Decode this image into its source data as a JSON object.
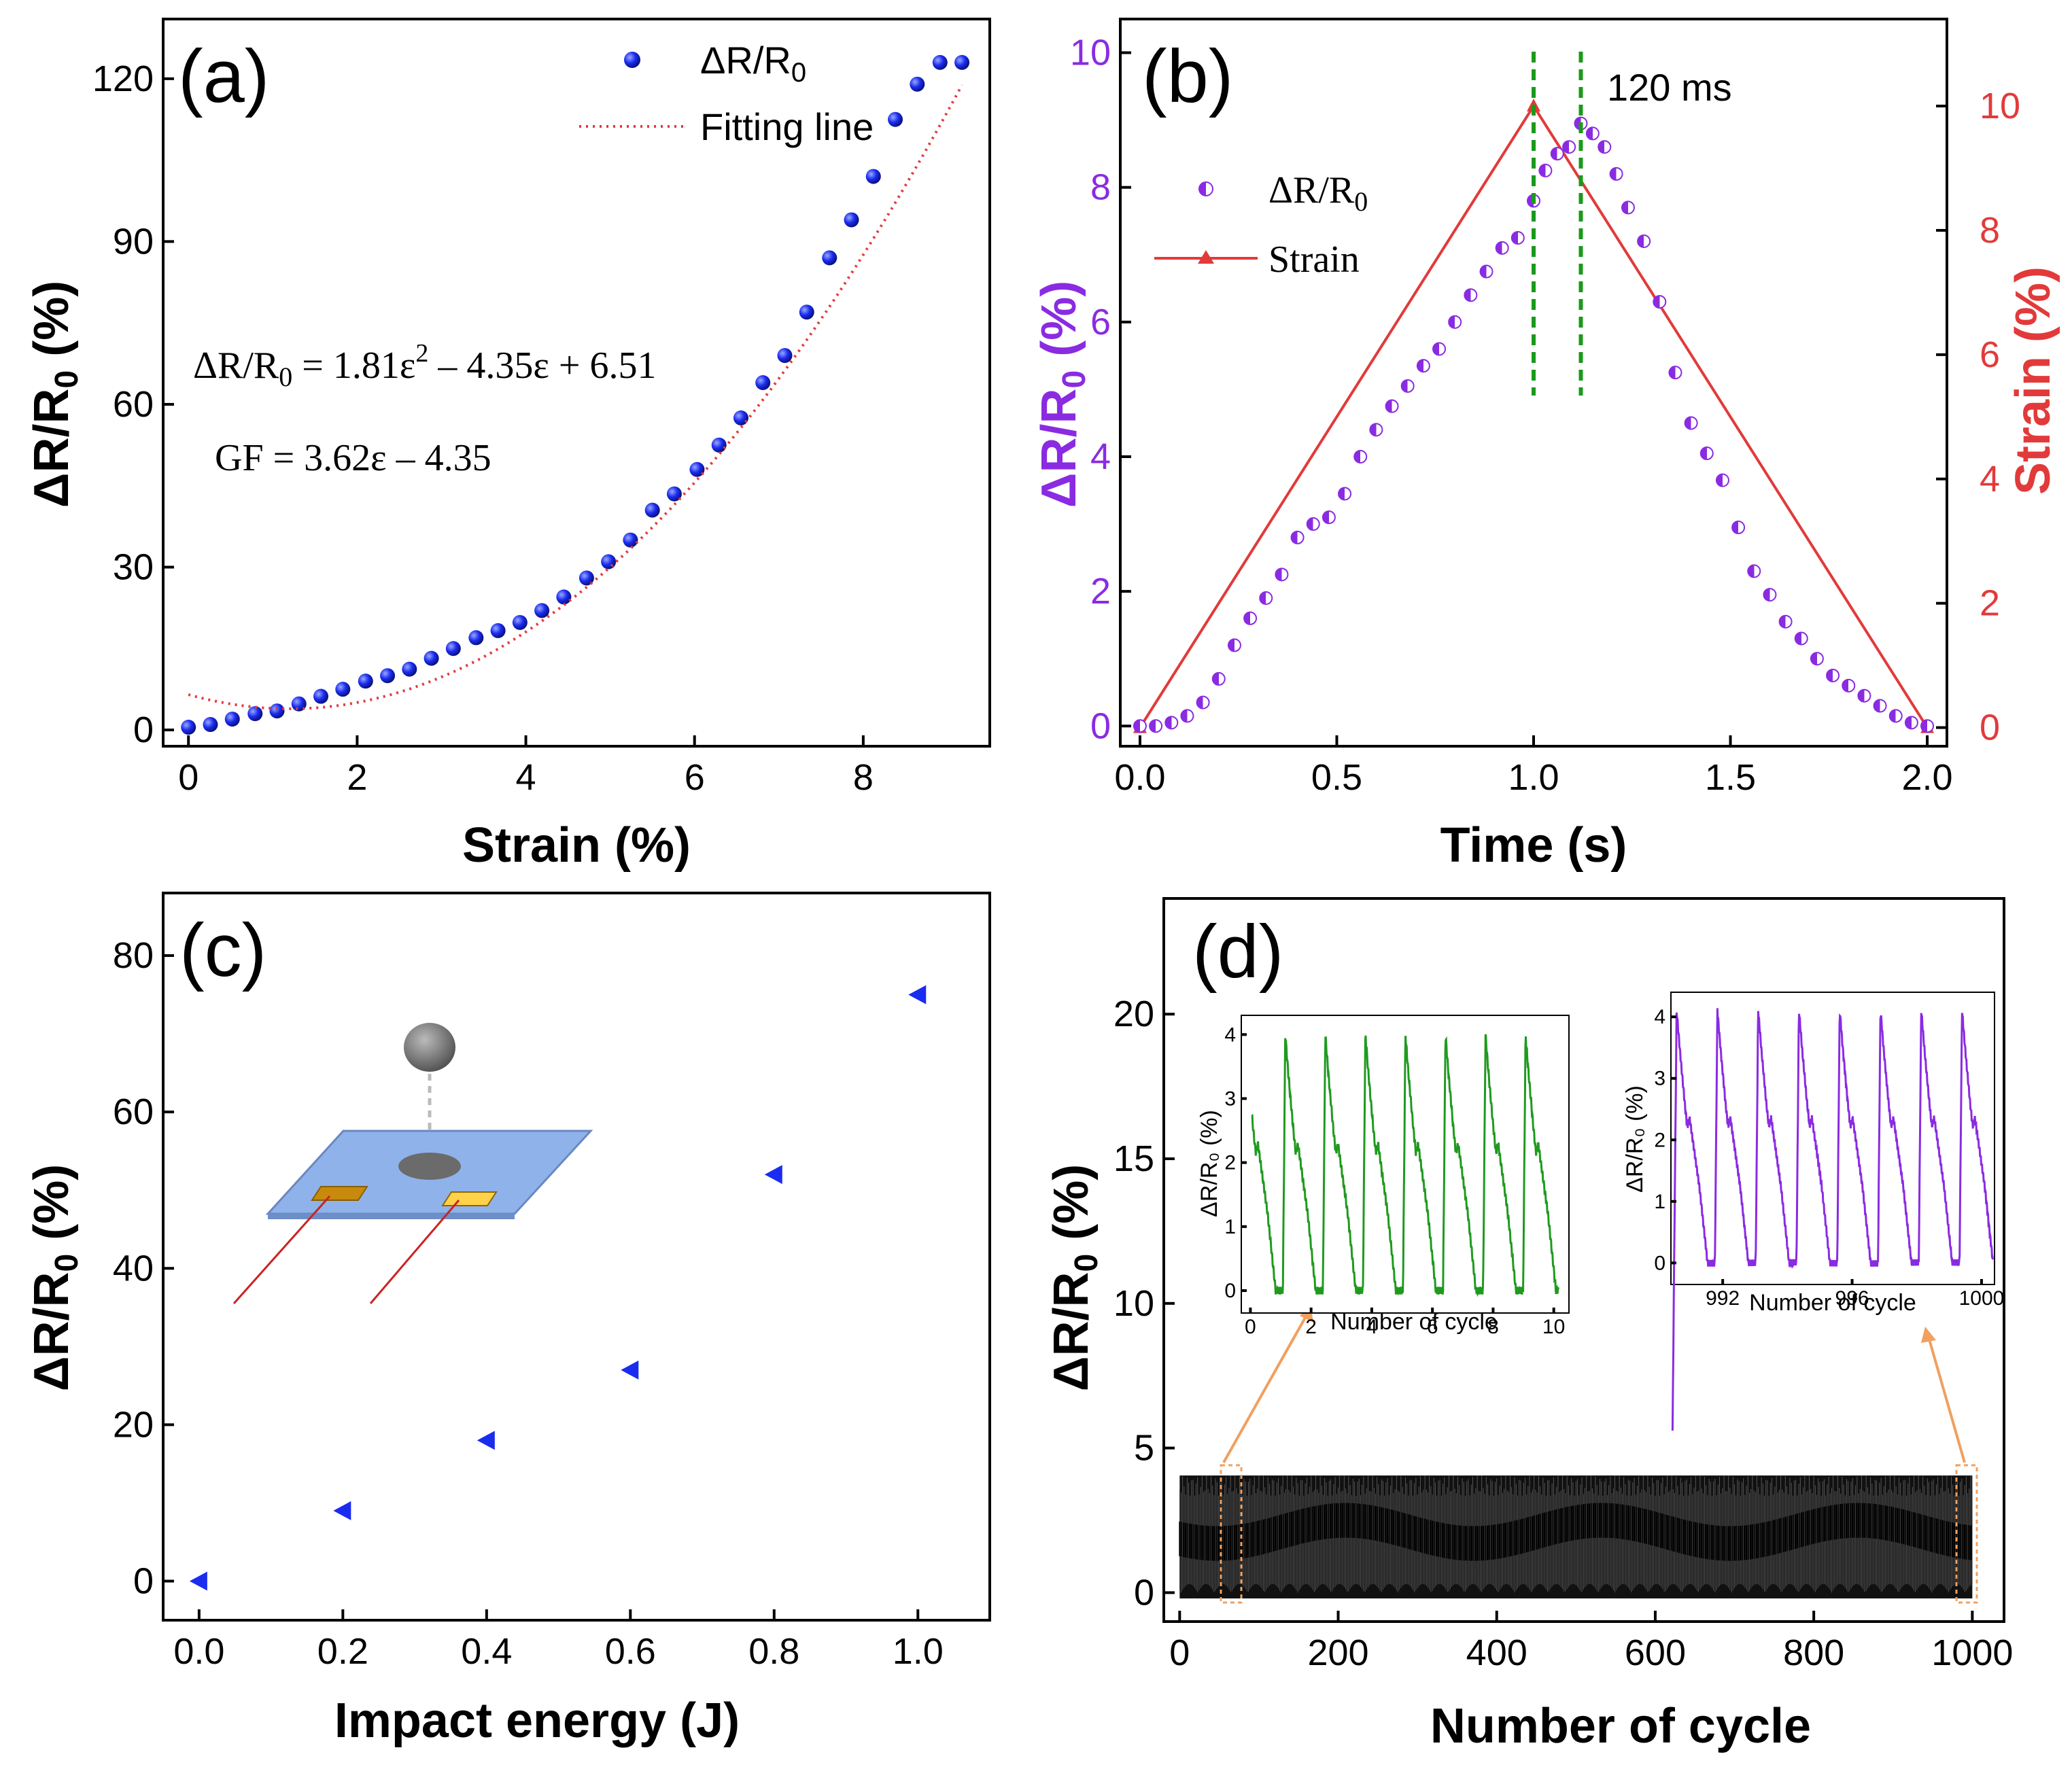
{
  "colors": {
    "blue": "#1a2cf0",
    "red": "#e23a3a",
    "purple": "#8a2be2",
    "green": "#1f9a1f",
    "dash_green": "#1a9a1a",
    "orange": "#f0a060",
    "black": "#000000"
  },
  "panels": {
    "a": {
      "label": "(a)",
      "xlabel": "Strain (%)",
      "ylabel_main": "ΔR/R",
      "ylabel_sub": "0",
      "ylabel_tail": " (%)",
      "legend": {
        "series1": "ΔR/R",
        "series1_sub": "0",
        "series2": "Fitting line"
      },
      "eq1": {
        "left": "ΔR/R",
        "sub": "0",
        "mid": " = 1.81ε",
        "sup": "2",
        "right": " – 4.35ε + 6.51"
      },
      "eq2": "GF = 3.62ε – 4.35",
      "xticks": [
        "0",
        "2",
        "4",
        "6",
        "8"
      ],
      "yticks": [
        "0",
        "30",
        "60",
        "90",
        "120"
      ]
    },
    "b": {
      "label": "(b)",
      "xlabel": "Time (s)",
      "ylabel_left_main": "ΔR/R",
      "ylabel_left_sub": "0",
      "ylabel_left_tail": " (%)",
      "ylabel_right": "Strain (%)",
      "legend": {
        "series1": "ΔR/R",
        "series1_sub": "0",
        "series2": "Strain"
      },
      "annotation": "120 ms",
      "xticks": [
        "0.0",
        "0.5",
        "1.0",
        "1.5",
        "2.0"
      ],
      "yticks_left": [
        "0",
        "2",
        "4",
        "6",
        "8",
        "10"
      ],
      "yticks_right": [
        "0",
        "2",
        "4",
        "6",
        "8",
        "10"
      ]
    },
    "c": {
      "label": "(c)",
      "xlabel": "Impact energy (J)",
      "ylabel_main": "ΔR/R",
      "ylabel_sub": "0",
      "ylabel_tail": " (%)",
      "xticks": [
        "0.0",
        "0.2",
        "0.4",
        "0.6",
        "0.8",
        "1.0"
      ],
      "yticks": [
        "0",
        "20",
        "40",
        "60",
        "80"
      ]
    },
    "d": {
      "label": "(d)",
      "xlabel": "Number of cycle",
      "ylabel_main": "ΔR/R",
      "ylabel_sub": "0",
      "ylabel_tail": " (%)",
      "xticks": [
        "0",
        "200",
        "400",
        "600",
        "800",
        "1000"
      ],
      "yticks": [
        "0",
        "5",
        "10",
        "15",
        "20"
      ],
      "inset1": {
        "xlabel": "Number of cycle",
        "ylabel": "ΔR/R₀ (%)",
        "xticks": [
          "0",
          "2",
          "4",
          "6",
          "8",
          "10"
        ],
        "yticks": [
          "0",
          "1",
          "2",
          "3",
          "4"
        ]
      },
      "inset2": {
        "xlabel": "Number of cycle",
        "ylabel": "ΔR/R₀ (%)",
        "xticks": [
          "992",
          "996",
          "1000"
        ],
        "yticks": [
          "0",
          "1",
          "2",
          "3",
          "4"
        ]
      }
    }
  },
  "chart_data": [
    {
      "panel": "a",
      "type": "scatter",
      "title": "",
      "xlabel": "Strain (%)",
      "ylabel": "ΔR/R0 (%)",
      "xlim": [
        -0.3,
        9.5
      ],
      "ylim": [
        -3,
        131
      ],
      "series": [
        {
          "name": "ΔR/R0",
          "x": [
            0,
            0.26,
            0.52,
            0.79,
            1.05,
            1.31,
            1.57,
            1.83,
            2.1,
            2.36,
            2.62,
            2.88,
            3.14,
            3.41,
            3.67,
            3.93,
            4.19,
            4.45,
            4.72,
            4.98,
            5.24,
            5.5,
            5.76,
            6.03,
            6.29,
            6.55,
            6.81,
            7.07,
            7.33,
            7.6,
            7.86,
            8.12,
            8.38,
            8.64,
            8.91,
            9.17
          ],
          "y": [
            0.5,
            1.0,
            2.0,
            3.0,
            3.5,
            4.8,
            6.2,
            7.5,
            9.0,
            10.0,
            11.2,
            13.2,
            15.0,
            17.0,
            18.3,
            19.8,
            22.0,
            24.5,
            28.0,
            31.0,
            35.0,
            40.5,
            43.5,
            48.0,
            52.5,
            57.5,
            64.0,
            69.0,
            77.0,
            87.0,
            94.0,
            102.0,
            112.5,
            119.0,
            123.0,
            123.0
          ]
        },
        {
          "name": "Fitting line",
          "type": "line",
          "x": [
            0,
            9.17
          ],
          "y": [
            6.51,
            118.8
          ],
          "model": "1.81x^2 - 4.35x + 6.51"
        }
      ]
    },
    {
      "panel": "b",
      "type": "scatter",
      "title": "",
      "xlabel": "Time (s)",
      "ylabel": "ΔR/R0 (%)",
      "ylabel_right": "Strain (%)",
      "xlim": [
        -0.05,
        2.05
      ],
      "ylim": [
        -0.3,
        10.5
      ],
      "ylim_right": [
        -0.3,
        11.4
      ],
      "series": [
        {
          "name": "ΔR/R0",
          "x": [
            0,
            0.04,
            0.08,
            0.12,
            0.16,
            0.2,
            0.24,
            0.28,
            0.32,
            0.36,
            0.4,
            0.44,
            0.48,
            0.52,
            0.56,
            0.6,
            0.64,
            0.68,
            0.72,
            0.76,
            0.8,
            0.84,
            0.88,
            0.92,
            0.96,
            1.0,
            1.03,
            1.06,
            1.09,
            1.12,
            1.15,
            1.18,
            1.21,
            1.24,
            1.28,
            1.32,
            1.36,
            1.4,
            1.44,
            1.48,
            1.52,
            1.56,
            1.6,
            1.64,
            1.68,
            1.72,
            1.76,
            1.8,
            1.84,
            1.88,
            1.92,
            1.96,
            2.0
          ],
          "y": [
            0,
            0.0,
            0.05,
            0.15,
            0.35,
            0.7,
            1.2,
            1.6,
            1.9,
            2.25,
            2.8,
            3.0,
            3.1,
            3.45,
            4.0,
            4.4,
            4.75,
            5.05,
            5.35,
            5.6,
            6.0,
            6.4,
            6.75,
            7.1,
            7.25,
            7.8,
            8.25,
            8.5,
            8.6,
            8.95,
            8.8,
            8.6,
            8.2,
            7.7,
            7.2,
            6.3,
            5.25,
            4.5,
            4.05,
            3.65,
            2.95,
            2.3,
            1.95,
            1.55,
            1.3,
            1.0,
            0.75,
            0.6,
            0.45,
            0.3,
            0.15,
            0.05,
            0.0
          ]
        },
        {
          "name": "Strain",
          "type": "line",
          "axis": "right",
          "x": [
            0,
            1.0,
            2.0
          ],
          "y": [
            0,
            10,
            0
          ]
        }
      ],
      "vlines": [
        1.0,
        1.12
      ],
      "annotation": "120 ms"
    },
    {
      "panel": "c",
      "type": "scatter",
      "title": "",
      "xlabel": "Impact energy (J)",
      "ylabel": "ΔR/R0 (%)",
      "xlim": [
        -0.05,
        1.1
      ],
      "ylim": [
        -5,
        88
      ],
      "series": [
        {
          "name": "ΔR/R0",
          "x": [
            0.0,
            0.2,
            0.4,
            0.6,
            0.8,
            1.0
          ],
          "y": [
            0,
            9,
            18,
            27,
            52,
            75
          ]
        }
      ]
    },
    {
      "panel": "d",
      "type": "line",
      "title": "",
      "xlabel": "Number of cycle",
      "ylabel": "ΔR/R0 (%)",
      "xlim": [
        -20,
        1040
      ],
      "ylim": [
        -1,
        24
      ],
      "series": [
        {
          "name": "ΔR/R0",
          "x_range": [
            0,
            1000
          ],
          "y_range": [
            -0.2,
            4.1
          ]
        }
      ],
      "insets": [
        {
          "x_range": [
            0,
            10
          ],
          "y_range": [
            0,
            4
          ],
          "cycles": 8,
          "color": "green"
        },
        {
          "x_range": [
            990,
            1000
          ],
          "y_range": [
            0,
            4.2
          ],
          "cycles": 8,
          "color": "purple"
        }
      ]
    }
  ]
}
